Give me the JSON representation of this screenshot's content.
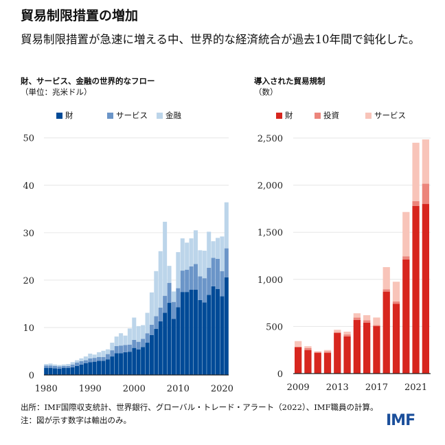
{
  "title": "貿易制限措置の増加",
  "subtitle": "貿易制限措置が急速に増える中、世界的な経済統合が過去10年間で鈍化した。",
  "footer": {
    "source": "出所：IMF国際収支統計、世界銀行、グローバル・トレード・アラート（2022）、IMF職員の計算。",
    "note": "注：図が示す数字は輸出のみ。",
    "logo": "IMF"
  },
  "chart_data": [
    {
      "type": "bar",
      "stacked": true,
      "title": "財、サービス、金融の世界的なフロー",
      "ylabel": "（単位：兆米ドル）",
      "ylim": [
        0,
        50
      ],
      "yticks": [
        "0",
        "10",
        "20",
        "30",
        "40",
        "50"
      ],
      "ytick_values": [
        0,
        10,
        20,
        30,
        40,
        50
      ],
      "xtick_labels": [
        "1980",
        "1990",
        "2000",
        "2010",
        "2020"
      ],
      "grid": true,
      "legend": "top",
      "categories": [
        1980,
        1981,
        1982,
        1983,
        1984,
        1985,
        1986,
        1987,
        1988,
        1989,
        1990,
        1991,
        1992,
        1993,
        1994,
        1995,
        1996,
        1997,
        1998,
        1999,
        2000,
        2001,
        2002,
        2003,
        2004,
        2005,
        2006,
        2007,
        2008,
        2009,
        2010,
        2011,
        2012,
        2013,
        2014,
        2015,
        2016,
        2017,
        2018,
        2019,
        2020,
        2021
      ],
      "series": [
        {
          "name": "財",
          "color": "#004a97",
          "values": [
            1.5,
            1.5,
            1.4,
            1.3,
            1.5,
            1.5,
            1.6,
            1.9,
            2.2,
            2.5,
            2.7,
            2.8,
            3.0,
            3.0,
            3.3,
            3.9,
            4.6,
            4.6,
            4.8,
            4.9,
            5.7,
            5.4,
            5.9,
            6.8,
            8.4,
            9.7,
            11.3,
            13.1,
            15.2,
            11.8,
            14.3,
            17.5,
            17.5,
            18.0,
            18.0,
            15.8,
            15.3,
            16.9,
            18.7,
            18.1,
            16.6,
            20.6
          ]
        },
        {
          "name": "サービス",
          "color": "#6b95c8",
          "values": [
            0.5,
            0.5,
            0.5,
            0.5,
            0.4,
            0.4,
            0.6,
            0.7,
            0.7,
            0.6,
            0.8,
            0.8,
            0.8,
            0.8,
            1.1,
            1.3,
            1.5,
            1.6,
            1.5,
            1.5,
            1.7,
            1.6,
            1.7,
            2.0,
            2.2,
            2.7,
            2.9,
            3.6,
            4.2,
            3.6,
            4.0,
            4.5,
            4.7,
            4.9,
            5.4,
            5.0,
            5.1,
            5.7,
            6.0,
            6.4,
            5.3,
            6.1
          ]
        },
        {
          "name": "金融",
          "color": "#bcd5ea",
          "values": [
            0.3,
            0.4,
            0.3,
            0.3,
            0.3,
            0.4,
            0.5,
            0.5,
            0.6,
            0.8,
            1.0,
            0.7,
            1.0,
            1.3,
            1.0,
            1.6,
            2.0,
            2.6,
            2.0,
            3.4,
            4.7,
            3.3,
            2.9,
            4.3,
            6.8,
            9.5,
            11.9,
            15.6,
            3.6,
            2.2,
            7.6,
            6.8,
            5.7,
            5.9,
            7.1,
            5.5,
            5.8,
            7.6,
            3.5,
            4.4,
            7.3,
            9.7
          ]
        }
      ]
    },
    {
      "type": "bar",
      "stacked": true,
      "title": "導入された貿易規制",
      "ylabel": "（数）",
      "ylim": [
        0,
        2500
      ],
      "yticks": [
        "0",
        "500",
        "1,000",
        "1,500",
        "2,000",
        "2,500"
      ],
      "ytick_values": [
        0,
        500,
        1000,
        1500,
        2000,
        2500
      ],
      "xtick_labels": [
        "2009",
        "2013",
        "2017",
        "2021"
      ],
      "grid": true,
      "legend": "top",
      "categories": [
        2009,
        2010,
        2011,
        2012,
        2013,
        2014,
        2015,
        2016,
        2017,
        2018,
        2019,
        2020,
        2021,
        2022
      ],
      "series": [
        {
          "name": "財",
          "color": "#d7261e",
          "values": [
            280,
            250,
            220,
            220,
            430,
            395,
            570,
            540,
            505,
            870,
            740,
            1210,
            1780,
            1800
          ]
        },
        {
          "name": "投資",
          "color": "#ec857b",
          "values": [
            5,
            20,
            10,
            15,
            10,
            20,
            25,
            25,
            10,
            25,
            25,
            35,
            50,
            215
          ]
        },
        {
          "name": "サービス",
          "color": "#f8c4b9",
          "values": [
            60,
            20,
            5,
            15,
            25,
            30,
            45,
            55,
            80,
            235,
            210,
            470,
            620,
            470
          ]
        }
      ]
    }
  ]
}
